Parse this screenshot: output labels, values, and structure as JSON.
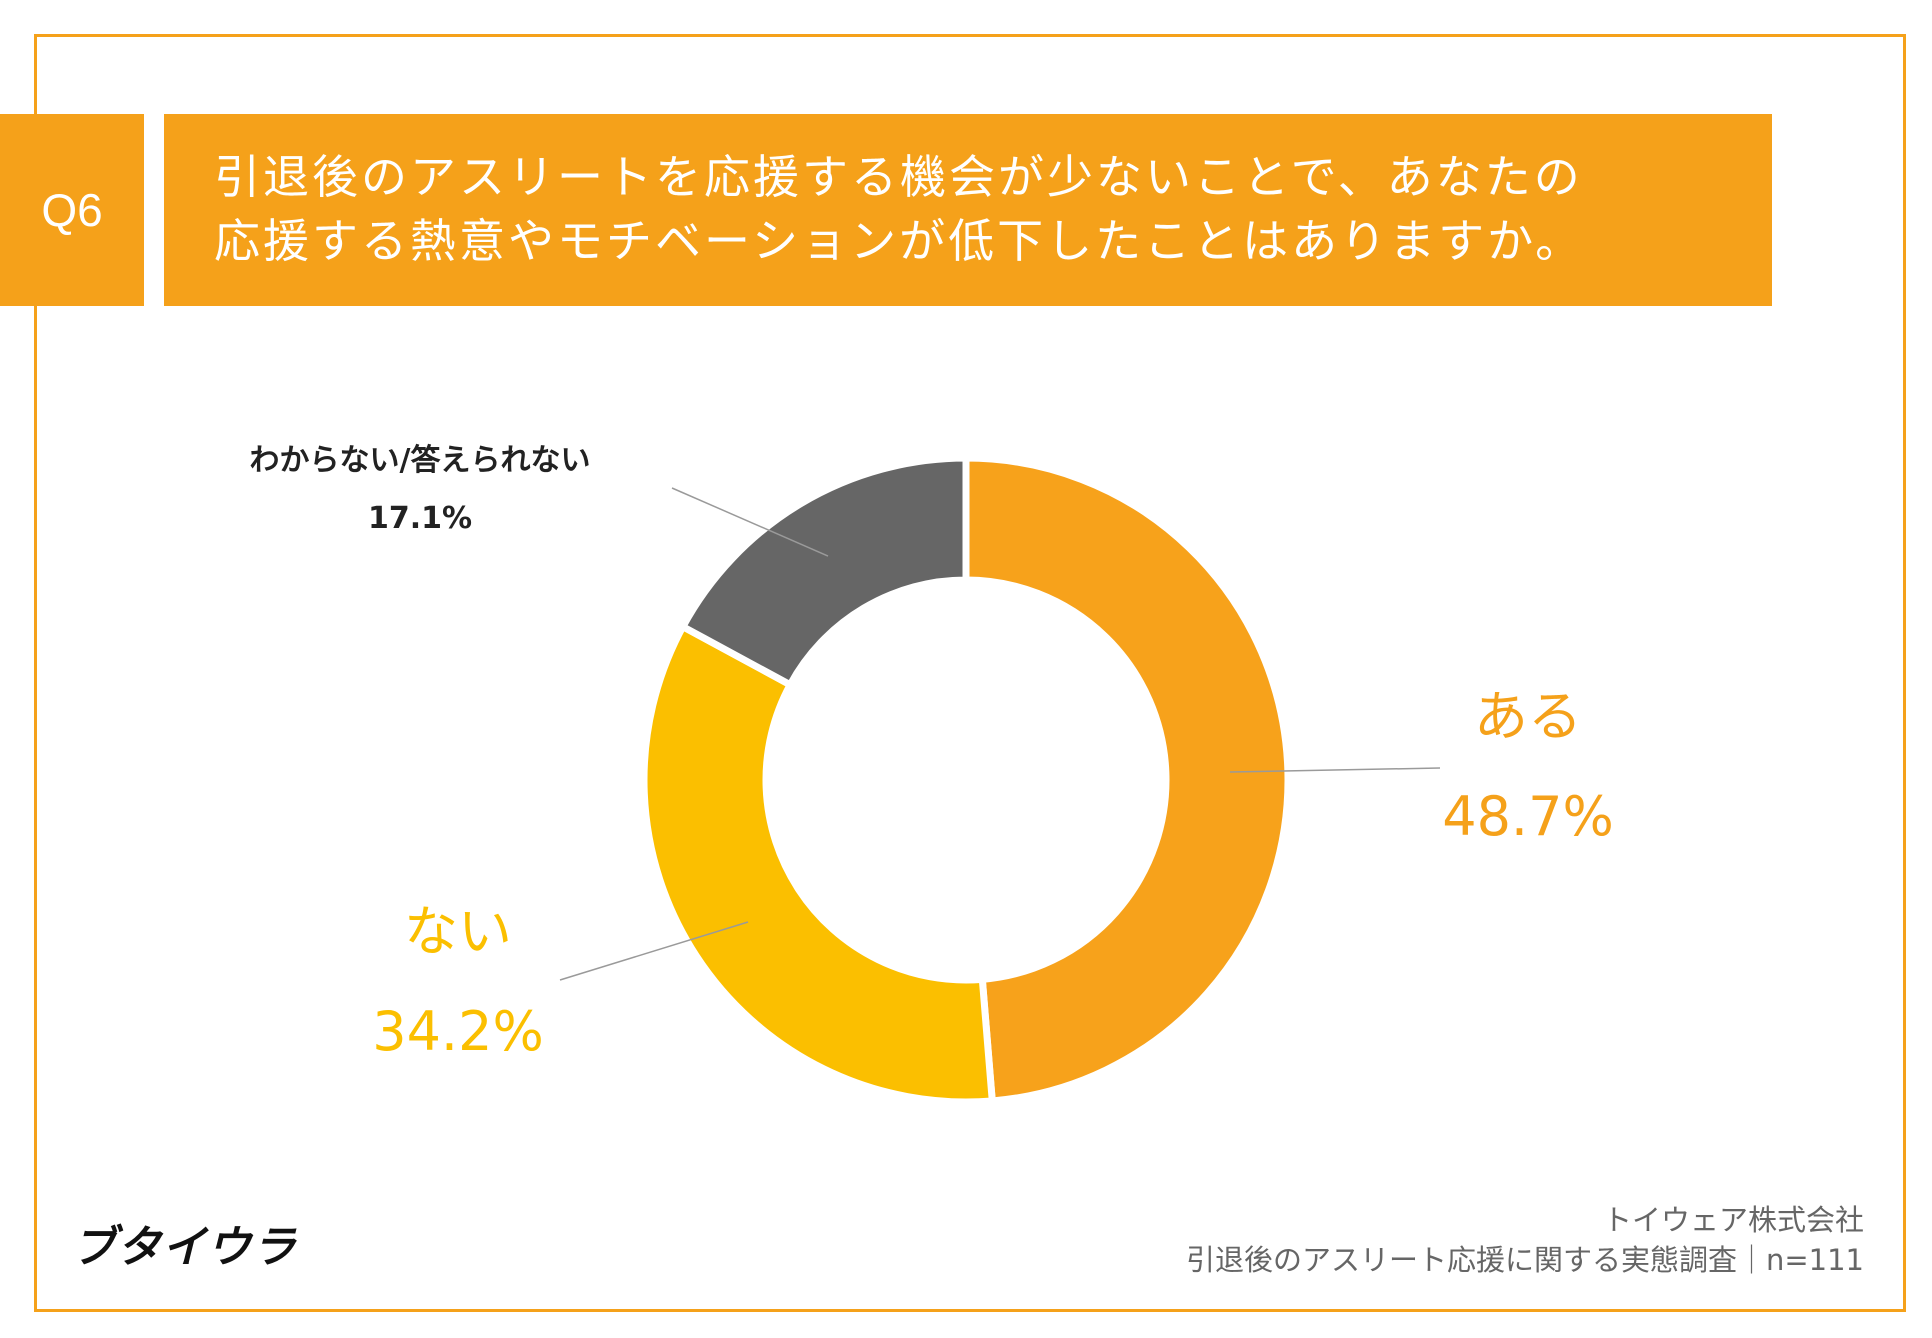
{
  "question": {
    "label": "Q6",
    "title_line1": "引退後のアスリートを応援する機会が少ないことで、あなたの",
    "title_line2": "応援する熱意やモチベーションが低下したことはありますか。"
  },
  "colors": {
    "accent": "#f5a11a",
    "series_aru": "#f7a21b",
    "series_nai": "#fbbf00",
    "series_wakaranai": "#666666",
    "label_dark": "#222222",
    "leader_line": "#9a9a9a"
  },
  "chart_data": {
    "type": "pie",
    "style": "donut",
    "start_angle_deg": 0,
    "direction": "clockwise",
    "slices": [
      {
        "label": "ある",
        "value": 48.7,
        "value_label": "48.7%",
        "color": "#f7a21b",
        "label_color": "#f5a11a"
      },
      {
        "label": "ない",
        "value": 34.2,
        "value_label": "34.2%",
        "color": "#fbbf00",
        "label_color": "#fbbf00"
      },
      {
        "label": "わからない/答えられない",
        "value": 17.1,
        "value_label": "17.1%",
        "color": "#666666",
        "label_color": "#222222"
      }
    ]
  },
  "footer": {
    "logo": "ブタイウラ",
    "company": "トイウェア株式会社",
    "survey": "引退後のアスリート応援に関する実態調査｜n=111"
  }
}
